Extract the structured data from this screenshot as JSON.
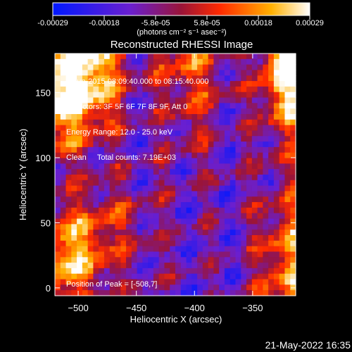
{
  "chart_data": {
    "type": "heatmap",
    "title": "Reconstructed RHESSI Image",
    "xlabel": "Heliocentric X (arcsec)",
    "ylabel": "Heliocentric Y (arcsec)",
    "xlim": [
      -520,
      -313
    ],
    "ylim": [
      -6,
      180
    ],
    "xticks": [
      -500,
      -450,
      -400,
      -350
    ],
    "yticks": [
      0,
      50,
      100,
      150
    ],
    "colorbar": {
      "range": [
        -0.00029,
        0.00029
      ],
      "ticks": [
        "-0.00029",
        "-0.00018",
        "-5.8e-05",
        "5.8e-05",
        "0.00018",
        "0.00029"
      ],
      "unit_label": "(photons cm⁻² s⁻¹ asec⁻²)",
      "colors": [
        "#0018ff",
        "#6a1fd0",
        "#9a1438",
        "#ff2a00",
        "#ffb000",
        "#ffffff"
      ]
    },
    "info_lines": [
      "8-Jun-2015 08:09:40.000 to 08:15:40.000",
      "Detectors: 3F 5F 6F 7F 8F 9F, Att 0",
      "Energy Range: 12.0 - 25.0 keV",
      "Clean     Total counts: 7.19E+03"
    ],
    "peak_label": "Position of Peak = [-508,7]",
    "peak_position": [
      -508,
      7
    ]
  },
  "timestamp": "21-May-2022 16:35"
}
